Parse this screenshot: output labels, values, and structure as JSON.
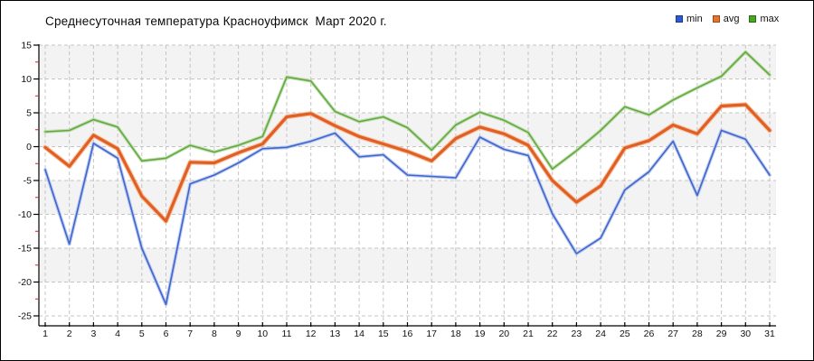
{
  "title": "Среднесуточная температура Красноуфимск  Март 2020 г.",
  "legend": [
    {
      "label": "min",
      "color": "#2b59d8"
    },
    {
      "label": "avg",
      "color": "#e8722e"
    },
    {
      "label": "max",
      "color": "#48a71f"
    }
  ],
  "colors": {
    "grid": "#c4c4c4",
    "band": "#f3f3f3",
    "axis": "#000000",
    "minor_tick": "#cc2222",
    "background": "#ffffff"
  },
  "chart_data": {
    "type": "line",
    "title": "Среднесуточная температура Красноуфимск  Март 2020 г.",
    "x": [
      1,
      2,
      3,
      4,
      5,
      6,
      7,
      8,
      9,
      10,
      11,
      12,
      13,
      14,
      15,
      16,
      17,
      18,
      19,
      20,
      21,
      22,
      23,
      24,
      25,
      26,
      27,
      28,
      29,
      30,
      31
    ],
    "xticks": [
      1,
      2,
      3,
      4,
      5,
      6,
      7,
      8,
      9,
      10,
      11,
      12,
      13,
      14,
      15,
      16,
      17,
      18,
      19,
      20,
      21,
      22,
      23,
      24,
      25,
      26,
      27,
      28,
      29,
      30,
      31
    ],
    "yticks": [
      15,
      10,
      5,
      0,
      -5,
      -10,
      -15,
      -20,
      -25
    ],
    "ylim": [
      -25,
      15
    ],
    "ytick_step": 5,
    "grid": "dashed",
    "alternating_bands": true,
    "legend_position": "top-right",
    "series": [
      {
        "name": "max",
        "color": "#63a93f",
        "halo": "#b5d8a2",
        "width": 1.6,
        "values": [
          2.2,
          2.4,
          4.0,
          2.9,
          -2.1,
          -1.7,
          0.2,
          -0.8,
          0.2,
          1.5,
          10.3,
          9.7,
          5.2,
          3.7,
          4.4,
          2.8,
          -0.5,
          3.2,
          5.1,
          3.9,
          2.1,
          -3.3,
          -0.6,
          2.4,
          5.9,
          4.7,
          6.9,
          8.7,
          10.4,
          14.0,
          10.6
        ]
      },
      {
        "name": "min",
        "color": "#3f66cc",
        "halo": "#b0c1ee",
        "width": 1.6,
        "values": [
          -3.4,
          -14.4,
          0.5,
          -1.7,
          -15.0,
          -23.3,
          -5.5,
          -4.2,
          -2.4,
          -0.3,
          -0.1,
          0.8,
          2.0,
          -1.5,
          -1.2,
          -4.2,
          -4.4,
          -4.6,
          1.4,
          -0.4,
          -1.3,
          -9.9,
          -15.8,
          -13.5,
          -6.4,
          -3.7,
          0.8,
          -7.2,
          2.4,
          1.1,
          -4.2
        ]
      },
      {
        "name": "avg",
        "color": "#e05f25",
        "halo": "#f6b68c",
        "width": 3.2,
        "values": [
          -0.1,
          -2.9,
          1.7,
          -0.3,
          -7.3,
          -11.0,
          -2.3,
          -2.4,
          -0.9,
          0.4,
          4.4,
          4.9,
          3.1,
          1.5,
          0.4,
          -0.7,
          -2.1,
          1.2,
          2.9,
          1.9,
          0.2,
          -5.0,
          -8.2,
          -5.8,
          -0.2,
          0.9,
          3.2,
          1.9,
          6.0,
          6.2,
          2.4
        ]
      }
    ]
  }
}
